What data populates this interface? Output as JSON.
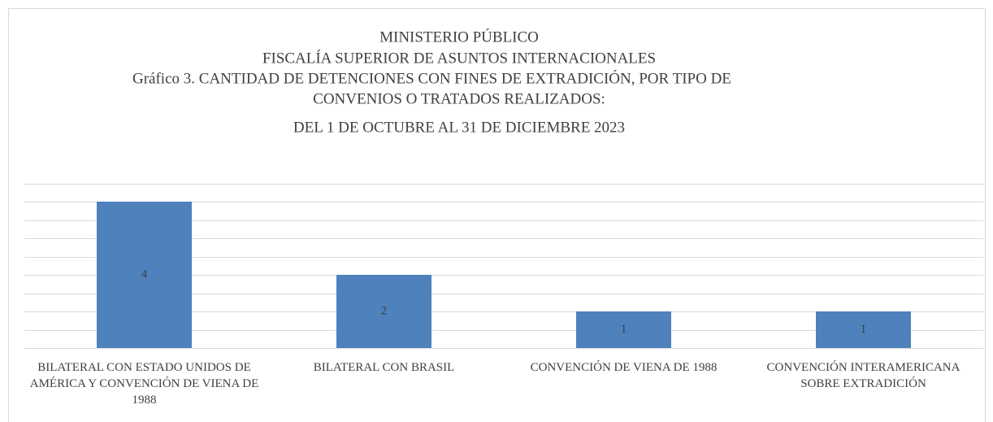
{
  "chart_data": {
    "type": "bar",
    "title": [
      "MINISTERIO PÚBLICO",
      "FISCALÍA SUPERIOR DE ASUNTOS INTERNACIONALES",
      "Gráfico 3.  CANTIDAD DE DETENCIONES CON FINES DE EXTRADICIÓN, POR TIPO DE",
      "CONVENIOS O TRATADOS REALIZADOS:",
      "DEL 1 DE OCTUBRE AL 31 DE DICIEMBRE 2023"
    ],
    "categories": [
      "BILATERAL CON ESTADO UNIDOS DE AMÉRICA Y CONVENCIÓN DE VIENA DE 1988",
      "BILATERAL CON BRASIL",
      "CONVENCIÓN DE VIENA DE 1988",
      "CONVENCIÓN INTERAMERICANA SOBRE EXTRADICIÓN"
    ],
    "values": [
      4,
      2,
      1,
      1
    ],
    "color": "#4f81bd",
    "ylim": [
      0,
      4.5
    ],
    "yticks": [
      0,
      0.5,
      1,
      1.5,
      2,
      2.5,
      3,
      3.5,
      4,
      4.5
    ],
    "grid": true
  }
}
